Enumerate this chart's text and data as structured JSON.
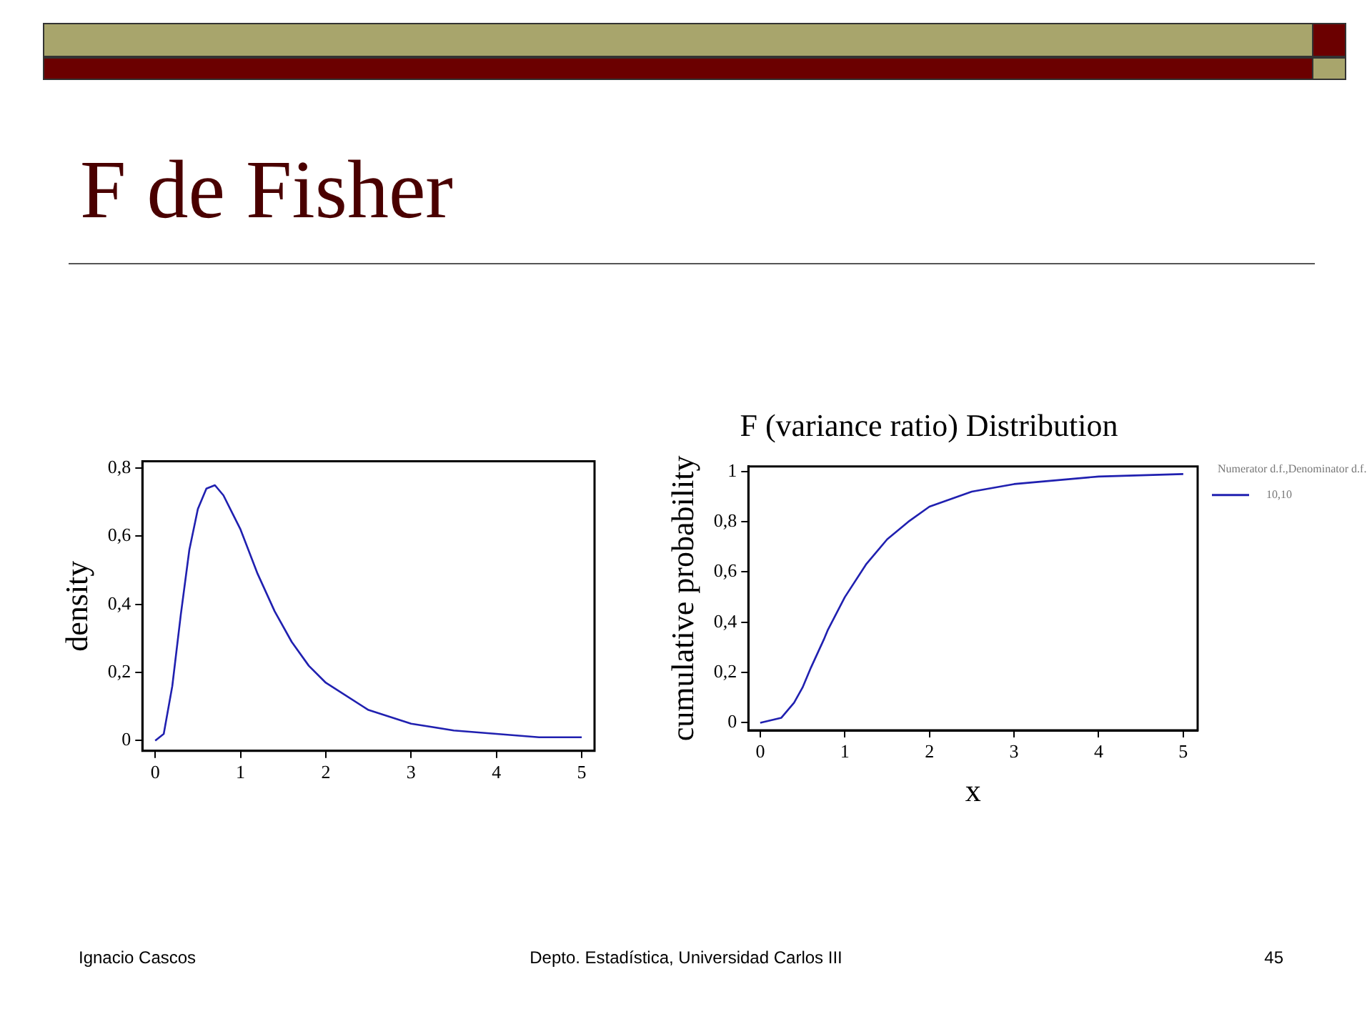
{
  "chart_data": [
    {
      "type": "other",
      "title": "F de Fisher",
      "annotations": [
        "Ignacio Cascos",
        "Depto. Estadística, Universidad Carlos III",
        "45"
      ]
    },
    {
      "type": "line",
      "ylabel": "density",
      "x": [
        0,
        0.1,
        0.2,
        0.3,
        0.4,
        0.5,
        0.6,
        0.7,
        0.8,
        0.9,
        1,
        1.2,
        1.4,
        1.6,
        1.8,
        2,
        2.5,
        3,
        3.5,
        4,
        4.5,
        5
      ],
      "series": [
        {
          "color": "#2020b0",
          "values": [
            0,
            0.02,
            0.16,
            0.37,
            0.56,
            0.68,
            0.74,
            0.75,
            0.72,
            0.67,
            0.62,
            0.49,
            0.38,
            0.29,
            0.22,
            0.17,
            0.09,
            0.05,
            0.03,
            0.02,
            0.01,
            0.01
          ]
        }
      ],
      "xlim": [
        -0.15,
        5.15
      ],
      "xticks": [
        {
          "value": 0,
          "label": "0"
        },
        1,
        2,
        3,
        4,
        5
      ],
      "ylim": [
        -0.03,
        0.82
      ],
      "yticks": [
        {
          "value": 0,
          "label": "0"
        },
        {
          "value": 0.2,
          "label": "0,2"
        },
        {
          "value": 0.4,
          "label": "0,4"
        },
        {
          "value": 0.6,
          "label": "0,6"
        },
        {
          "value": 0.8,
          "label": "0,8"
        }
      ],
      "grid": false,
      "marker": "none",
      "line_style": "solid"
    },
    {
      "type": "line",
      "title": "F (variance ratio) Distribution",
      "xlabel": "x",
      "ylabel": "cumulative probability",
      "legend_title": "Numerator d.f.,Denominator d.f.",
      "x": [
        0,
        0.25,
        0.3,
        0.4,
        0.5,
        0.6,
        0.75,
        0.8,
        1,
        1.25,
        1.5,
        1.75,
        2,
        2.5,
        3,
        4,
        5
      ],
      "series": [
        {
          "name": "10,10",
          "color": "#2020b0",
          "values": [
            0,
            0.02,
            0.04,
            0.08,
            0.14,
            0.22,
            0.33,
            0.37,
            0.5,
            0.63,
            0.73,
            0.8,
            0.86,
            0.92,
            0.95,
            0.98,
            0.99
          ]
        }
      ],
      "xlim": [
        -0.14,
        5.17
      ],
      "xticks": [
        {
          "value": 0,
          "label": "0"
        },
        1,
        2,
        3,
        4,
        5
      ],
      "ylim": [
        -0.03,
        1.02
      ],
      "yticks": [
        {
          "value": 0,
          "label": "0"
        },
        {
          "value": 0.2,
          "label": "0,2"
        },
        {
          "value": 0.4,
          "label": "0,4"
        },
        {
          "value": 0.6,
          "label": "0,6"
        },
        {
          "value": 0.8,
          "label": "0,8"
        },
        1
      ],
      "grid": false,
      "legend": "top right",
      "marker": "none",
      "line_style": "solid"
    }
  ]
}
